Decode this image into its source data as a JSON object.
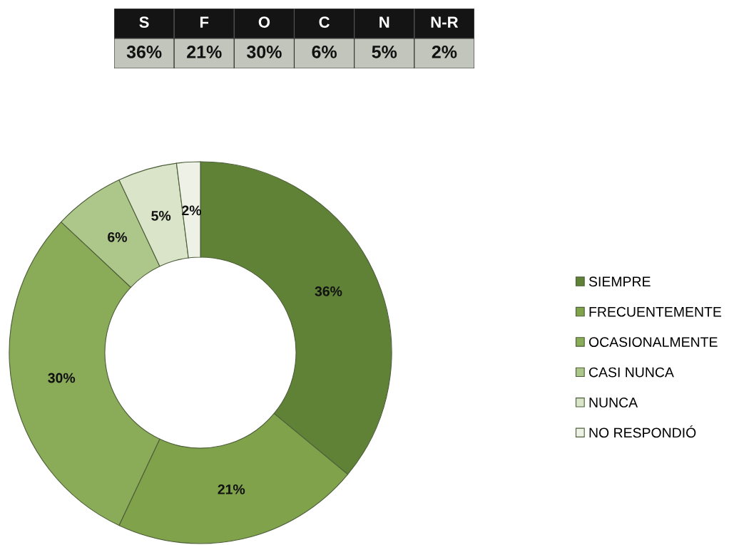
{
  "chart_data": {
    "type": "donut",
    "categories": [
      "SIEMPRE",
      "FRECUENTEMENTE",
      "OCASIONALMENTE",
      "CASI NUNCA",
      "NUNCA",
      "NO RESPONDIÓ"
    ],
    "values": [
      36,
      21,
      30,
      6,
      5,
      2
    ],
    "colors": [
      "#5f8236",
      "#7fa24a",
      "#8aab57",
      "#adc68a",
      "#d9e4c8",
      "#eef2e6"
    ],
    "value_labels": [
      "36%",
      "21%",
      "30%",
      "6%",
      "5%",
      "2%"
    ],
    "annotations": [
      "S",
      "F",
      "O",
      "C",
      "N",
      "N-R"
    ],
    "legend": "right"
  }
}
